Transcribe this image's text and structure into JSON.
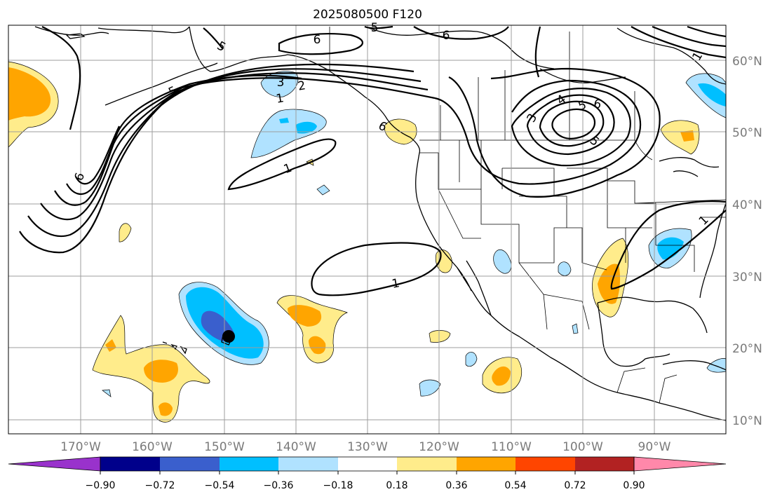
{
  "title": "2025080500 F120",
  "latitude_labels": [
    "60°N",
    "50°N",
    "40°N",
    "30°N",
    "20°N",
    "10°N"
  ],
  "longitude_labels": [
    "170°W",
    "160°W",
    "150°W",
    "140°W",
    "130°W",
    "120°W",
    "110°W",
    "100°W",
    "90°W"
  ],
  "contour_labels": [
    "6",
    "5",
    "6",
    "6",
    "3",
    "2",
    "1",
    "5",
    "5",
    "6",
    "1",
    "1",
    "3",
    "4",
    "5",
    "6",
    "5",
    "1",
    "1"
  ],
  "colorbar": {
    "tick_labels": [
      "−0.90",
      "−0.72",
      "−0.54",
      "−0.36",
      "−0.18",
      "0.18",
      "0.36",
      "0.54",
      "0.72",
      "0.90"
    ],
    "colors": [
      "#9932cc",
      "#00008b",
      "#3a5fcd",
      "#00bfff",
      "#b0e2ff",
      "#ffffff",
      "#ffec8b",
      "#ffa500",
      "#ff4500",
      "#b22222",
      "#ff88aa"
    ]
  },
  "marker": {
    "label": "storm position",
    "color": "#000000"
  },
  "colors": {
    "gridline": "#9e9e9e",
    "axis_label": "#7a7a7a",
    "contour": "#000000"
  }
}
